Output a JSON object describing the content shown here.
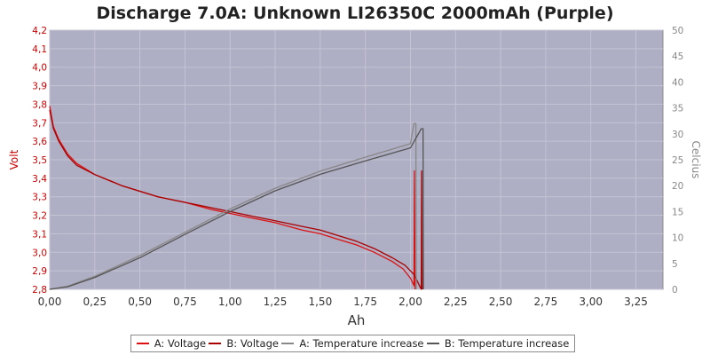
{
  "title": "Discharge 7.0A: Unknown LI26350C 2000mAh (Purple)",
  "chart_data": {
    "type": "line",
    "title": "Discharge 7.0A: Unknown LI26350C 2000mAh (Purple)",
    "xlabel": "Ah",
    "ylabel_left": "Volt",
    "ylabel_right": "Celcius",
    "xlim": [
      0,
      3.4
    ],
    "ylim_left": [
      2.8,
      4.2
    ],
    "ylim_right": [
      0,
      50
    ],
    "x_ticks": [
      "0,00",
      "0,25",
      "0,50",
      "0,75",
      "1,00",
      "1,25",
      "1,50",
      "1,75",
      "2,00",
      "2,25",
      "2,50",
      "2,75",
      "3,00",
      "3,25"
    ],
    "y_left_ticks": [
      "2,8",
      "2,9",
      "3,0",
      "3,1",
      "3,2",
      "3,3",
      "3,4",
      "3,5",
      "3,6",
      "3,7",
      "3,8",
      "3,9",
      "4,0",
      "4,1",
      "4,2"
    ],
    "y_right_ticks": [
      "0",
      "5",
      "10",
      "15",
      "20",
      "25",
      "30",
      "35",
      "40",
      "45",
      "50"
    ],
    "grid": true,
    "legend_position": "bottom",
    "background_color": "#aeaec4",
    "series": [
      {
        "name": "A: Voltage",
        "axis": "left",
        "color": "#dd1111",
        "points": [
          [
            0.0,
            3.79
          ],
          [
            0.02,
            3.68
          ],
          [
            0.05,
            3.61
          ],
          [
            0.1,
            3.53
          ],
          [
            0.15,
            3.48
          ],
          [
            0.25,
            3.42
          ],
          [
            0.4,
            3.36
          ],
          [
            0.5,
            3.33
          ],
          [
            0.6,
            3.3
          ],
          [
            0.75,
            3.27
          ],
          [
            0.9,
            3.23
          ],
          [
            1.0,
            3.21
          ],
          [
            1.1,
            3.19
          ],
          [
            1.25,
            3.16
          ],
          [
            1.4,
            3.12
          ],
          [
            1.5,
            3.1
          ],
          [
            1.6,
            3.07
          ],
          [
            1.7,
            3.04
          ],
          [
            1.8,
            3.0
          ],
          [
            1.9,
            2.95
          ],
          [
            1.96,
            2.91
          ],
          [
            2.0,
            2.86
          ],
          [
            2.02,
            2.82
          ],
          [
            2.022,
            3.44
          ],
          [
            2.025,
            2.8
          ]
        ]
      },
      {
        "name": "B: Voltage",
        "axis": "left",
        "color": "#aa0000",
        "points": [
          [
            0.0,
            3.77
          ],
          [
            0.02,
            3.67
          ],
          [
            0.05,
            3.6
          ],
          [
            0.1,
            3.52
          ],
          [
            0.15,
            3.47
          ],
          [
            0.25,
            3.42
          ],
          [
            0.4,
            3.36
          ],
          [
            0.5,
            3.33
          ],
          [
            0.6,
            3.3
          ],
          [
            0.75,
            3.27
          ],
          [
            0.9,
            3.24
          ],
          [
            1.0,
            3.22
          ],
          [
            1.1,
            3.2
          ],
          [
            1.25,
            3.17
          ],
          [
            1.4,
            3.14
          ],
          [
            1.5,
            3.12
          ],
          [
            1.6,
            3.09
          ],
          [
            1.7,
            3.06
          ],
          [
            1.8,
            3.02
          ],
          [
            1.9,
            2.97
          ],
          [
            1.97,
            2.93
          ],
          [
            2.02,
            2.88
          ],
          [
            2.05,
            2.82
          ],
          [
            2.06,
            2.8
          ],
          [
            2.062,
            3.44
          ],
          [
            2.065,
            2.8
          ]
        ]
      },
      {
        "name": "A: Temperature increase",
        "axis": "right",
        "color": "#888888",
        "points": [
          [
            0.0,
            0.0
          ],
          [
            0.1,
            0.6
          ],
          [
            0.25,
            2.5
          ],
          [
            0.5,
            6.5
          ],
          [
            0.75,
            11.0
          ],
          [
            1.0,
            15.5
          ],
          [
            1.25,
            19.5
          ],
          [
            1.5,
            22.8
          ],
          [
            1.75,
            25.5
          ],
          [
            2.0,
            28.1
          ],
          [
            2.02,
            32.0
          ],
          [
            2.03,
            32.0
          ],
          [
            2.032,
            0.0
          ]
        ]
      },
      {
        "name": "B: Temperature increase",
        "axis": "right",
        "color": "#555555",
        "points": [
          [
            0.0,
            0.0
          ],
          [
            0.1,
            0.5
          ],
          [
            0.25,
            2.3
          ],
          [
            0.5,
            6.1
          ],
          [
            0.75,
            10.6
          ],
          [
            1.0,
            15.0
          ],
          [
            1.25,
            19.0
          ],
          [
            1.5,
            22.2
          ],
          [
            1.75,
            24.8
          ],
          [
            2.0,
            27.3
          ],
          [
            2.06,
            31.0
          ],
          [
            2.07,
            31.0
          ],
          [
            2.072,
            0.0
          ]
        ]
      }
    ]
  }
}
